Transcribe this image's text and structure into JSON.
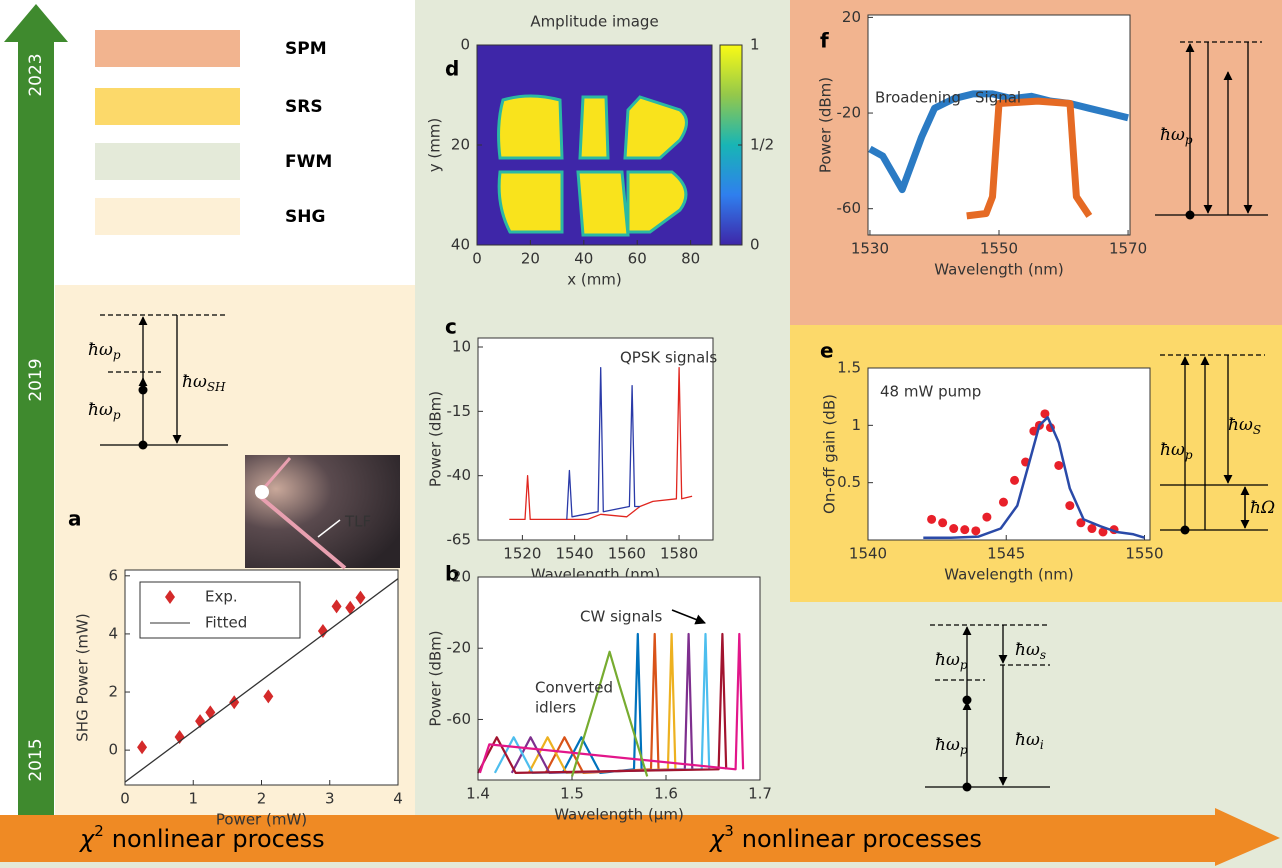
{
  "timeline": {
    "years": [
      "2023",
      "2019",
      "2015"
    ]
  },
  "process_legend": [
    {
      "label": "SPM",
      "color": "#f2b48f"
    },
    {
      "label": "SRS",
      "color": "#fcd96a"
    },
    {
      "label": "FWM",
      "color": "#e4ead9"
    },
    {
      "label": "SHG",
      "color": "#fdf0d6"
    }
  ],
  "process_axis": [
    {
      "symbol": "χ",
      "power": "2",
      "text": "nonlinear process"
    },
    {
      "symbol": "χ",
      "power": "3",
      "text": "nonlinear processes"
    }
  ],
  "energy_diagrams": {
    "shg": [
      {
        "main": "ħω",
        "sub": "p"
      },
      {
        "main": "ħω",
        "sub": "p"
      },
      {
        "main": "ħω",
        "sub": "SH"
      }
    ],
    "spm": [
      {
        "main": "ħω",
        "sub": "p"
      }
    ],
    "srs": [
      {
        "main": "ħω",
        "sub": "p"
      },
      {
        "main": "ħω",
        "sub": "S"
      },
      {
        "main": "ħΩ"
      }
    ],
    "fwm": [
      {
        "main": "ħω",
        "sub": "p"
      },
      {
        "main": "ħω",
        "sub": "p"
      },
      {
        "main": "ħω",
        "sub": "s"
      },
      {
        "main": "ħω",
        "sub": "i"
      }
    ]
  },
  "chart_data": [
    {
      "type": "scatter",
      "panel": "a",
      "xlabel": "Power (mW)",
      "ylabel": "SHG Power (mW)",
      "xlim": [
        0,
        4
      ],
      "ylim": [
        -1.2,
        6.2
      ],
      "xticks": [
        0,
        1,
        2,
        3,
        4
      ],
      "yticks": [
        0,
        2,
        4,
        6
      ],
      "legend": "upper left",
      "annotations": [
        "TLF"
      ],
      "series": [
        {
          "name": "Exp.",
          "color": "#d42a2a",
          "mode": "markers",
          "marker": "diamond",
          "x": [
            0.25,
            0.8,
            1.1,
            1.25,
            1.6,
            2.1,
            2.9,
            3.1,
            3.3,
            3.45
          ],
          "values": [
            0.1,
            0.45,
            1.0,
            1.3,
            1.65,
            1.85,
            4.1,
            4.95,
            4.9,
            5.25
          ]
        },
        {
          "name": "Fitted",
          "color": "#333333",
          "mode": "line",
          "x": [
            0,
            4
          ],
          "values": [
            -1.1,
            5.9
          ]
        }
      ]
    },
    {
      "type": "heatmap",
      "panel": "d",
      "title": "Amplitude image",
      "xlabel": "x (mm)",
      "ylabel": "y (mm)",
      "xlim": [
        0,
        88
      ],
      "ylim": [
        40,
        0
      ],
      "xticks": [
        0,
        20,
        40,
        60,
        80
      ],
      "yticks": [
        0,
        20,
        40
      ],
      "colorbar": {
        "lim": [
          0,
          1
        ],
        "ticks": [
          0,
          {
            "value": 0.5,
            "label": "1/2"
          },
          1
        ]
      }
    },
    {
      "type": "line",
      "panel": "c",
      "xlabel": "Wavelength (nm)",
      "ylabel": "Power (dBm)",
      "xlim": [
        1503,
        1593
      ],
      "ylim": [
        -65,
        13.5
      ],
      "xticks": [
        1520,
        1540,
        1560,
        1580
      ],
      "yticks": [
        10,
        -15,
        -40,
        -65
      ],
      "annotations": [
        "QPSK signals"
      ],
      "series": [
        {
          "color": "#e0261f",
          "mode": "line",
          "x": [
            1515,
            1521,
            1522,
            1523,
            1545,
            1550,
            1560,
            1565,
            1570,
            1579,
            1580,
            1581,
            1585
          ],
          "values": [
            -57,
            -57,
            -40,
            -57,
            -57,
            -55,
            -56,
            -52,
            -50,
            -49,
            2,
            -49,
            -48
          ]
        },
        {
          "color": "#2a3aa8",
          "mode": "line",
          "x": [
            1537,
            1538,
            1539,
            1549,
            1550,
            1551,
            1561,
            1562,
            1563,
            1565
          ],
          "values": [
            -57,
            -38,
            -56,
            -54,
            2,
            -54,
            -52,
            -5,
            -52,
            -52
          ]
        }
      ]
    },
    {
      "type": "line",
      "panel": "b",
      "xlabel": "Wavelength (μm)",
      "ylabel": "Power (dBm)",
      "xlim": [
        1.4,
        1.7
      ],
      "ylim": [
        -94,
        20
      ],
      "xticks": [
        1.4,
        1.5,
        1.6,
        1.7
      ],
      "yticks": [
        20,
        -20,
        -60
      ],
      "annotations": [
        "CW signals",
        "Converted",
        "idlers"
      ],
      "series": [
        {
          "color": "#0072bd",
          "mode": "line",
          "x": [
            1.49,
            1.51,
            1.53,
            1.566,
            1.57,
            1.574
          ],
          "values": [
            -90,
            -70,
            -90,
            -88,
            -12,
            -88
          ]
        },
        {
          "color": "#d95319",
          "mode": "line",
          "x": [
            1.472,
            1.492,
            1.512,
            1.584,
            1.588,
            1.592
          ],
          "values": [
            -90,
            -70,
            -90,
            -88,
            -12,
            -88
          ]
        },
        {
          "color": "#edb120",
          "mode": "line",
          "x": [
            1.454,
            1.474,
            1.494,
            1.602,
            1.606,
            1.61
          ],
          "values": [
            -90,
            -70,
            -90,
            -88,
            -12,
            -88
          ]
        },
        {
          "color": "#7e2f8e",
          "mode": "line",
          "x": [
            1.436,
            1.456,
            1.476,
            1.62,
            1.624,
            1.628
          ],
          "values": [
            -90,
            -70,
            -90,
            -88,
            -12,
            -88
          ]
        },
        {
          "color": "#4dbeee",
          "mode": "line",
          "x": [
            1.418,
            1.438,
            1.458,
            1.638,
            1.642,
            1.646
          ],
          "values": [
            -90,
            -70,
            -90,
            -88,
            -12,
            -88
          ]
        },
        {
          "color": "#a2142f",
          "mode": "line",
          "x": [
            1.4,
            1.42,
            1.44,
            1.656,
            1.66,
            1.664
          ],
          "values": [
            -90,
            -70,
            -90,
            -88,
            -12,
            -88
          ]
        },
        {
          "color": "#e2168a",
          "mode": "line",
          "x": [
            1.402,
            1.412,
            1.674,
            1.678,
            1.682
          ],
          "values": [
            -90,
            -74,
            -88,
            -12,
            -88
          ]
        },
        {
          "color": "#77ac30",
          "mode": "line",
          "x": [
            1.5,
            1.53,
            1.54,
            1.55,
            1.58
          ],
          "values": [
            -92,
            -40,
            -22,
            -40,
            -92
          ]
        }
      ]
    },
    {
      "type": "line",
      "panel": "f",
      "xlabel": "Wavelength (nm)",
      "ylabel": "Power (dBm)",
      "xlim": [
        1529.7,
        1570.3
      ],
      "ylim": [
        -71,
        21
      ],
      "xticks": [
        1530,
        1550,
        1570
      ],
      "yticks": [
        20,
        -20,
        -60
      ],
      "series": [
        {
          "name": "Broadening",
          "color": "#2b7bc4",
          "mode": "line",
          "x": [
            1530,
            1532,
            1535,
            1538,
            1540,
            1543,
            1546,
            1549,
            1552,
            1555,
            1558,
            1561,
            1564,
            1567,
            1570
          ],
          "values": [
            -35,
            -38,
            -52,
            -30,
            -18,
            -14,
            -12,
            -12,
            -14,
            -13,
            -15,
            -16,
            -18,
            -20,
            -22
          ]
        },
        {
          "name": "Signal",
          "color": "#e56a24",
          "mode": "line",
          "x": [
            1545,
            1548,
            1549,
            1550,
            1556,
            1561,
            1562,
            1564
          ],
          "values": [
            -63,
            -62,
            -55,
            -16,
            -15,
            -16,
            -55,
            -63
          ]
        }
      ]
    },
    {
      "type": "scatter",
      "panel": "e",
      "xlabel": "Wavelength (nm)",
      "ylabel": "On-off gain (dB)",
      "xlim": [
        1540,
        1550.2
      ],
      "ylim": [
        0,
        1.5
      ],
      "xticks": [
        1540,
        1545,
        1550
      ],
      "yticks": [
        0.5,
        1,
        1.5
      ],
      "annotations": [
        "48 mW pump"
      ],
      "series": [
        {
          "color": "#e8202a",
          "mode": "markers",
          "marker": "circle",
          "x": [
            1542.3,
            1542.7,
            1543.1,
            1543.5,
            1543.9,
            1544.3,
            1544.9,
            1545.3,
            1545.7,
            1546.0,
            1546.2,
            1546.4,
            1546.6,
            1546.9,
            1547.3,
            1547.7,
            1548.1,
            1548.5,
            1548.9
          ],
          "values": [
            0.18,
            0.15,
            0.1,
            0.09,
            0.08,
            0.2,
            0.33,
            0.52,
            0.68,
            0.95,
            1.0,
            1.1,
            0.98,
            0.65,
            0.3,
            0.15,
            0.1,
            0.07,
            0.09
          ]
        },
        {
          "color": "#2a4aa8",
          "mode": "line",
          "x": [
            1542,
            1543,
            1544,
            1544.8,
            1545.4,
            1545.8,
            1546.2,
            1546.5,
            1546.9,
            1547.3,
            1547.8,
            1548.4,
            1549,
            1549.6,
            1550
          ],
          "values": [
            0.02,
            0.02,
            0.03,
            0.1,
            0.3,
            0.65,
            1.0,
            1.07,
            0.85,
            0.45,
            0.18,
            0.12,
            0.07,
            0.05,
            0.02
          ]
        }
      ]
    }
  ]
}
